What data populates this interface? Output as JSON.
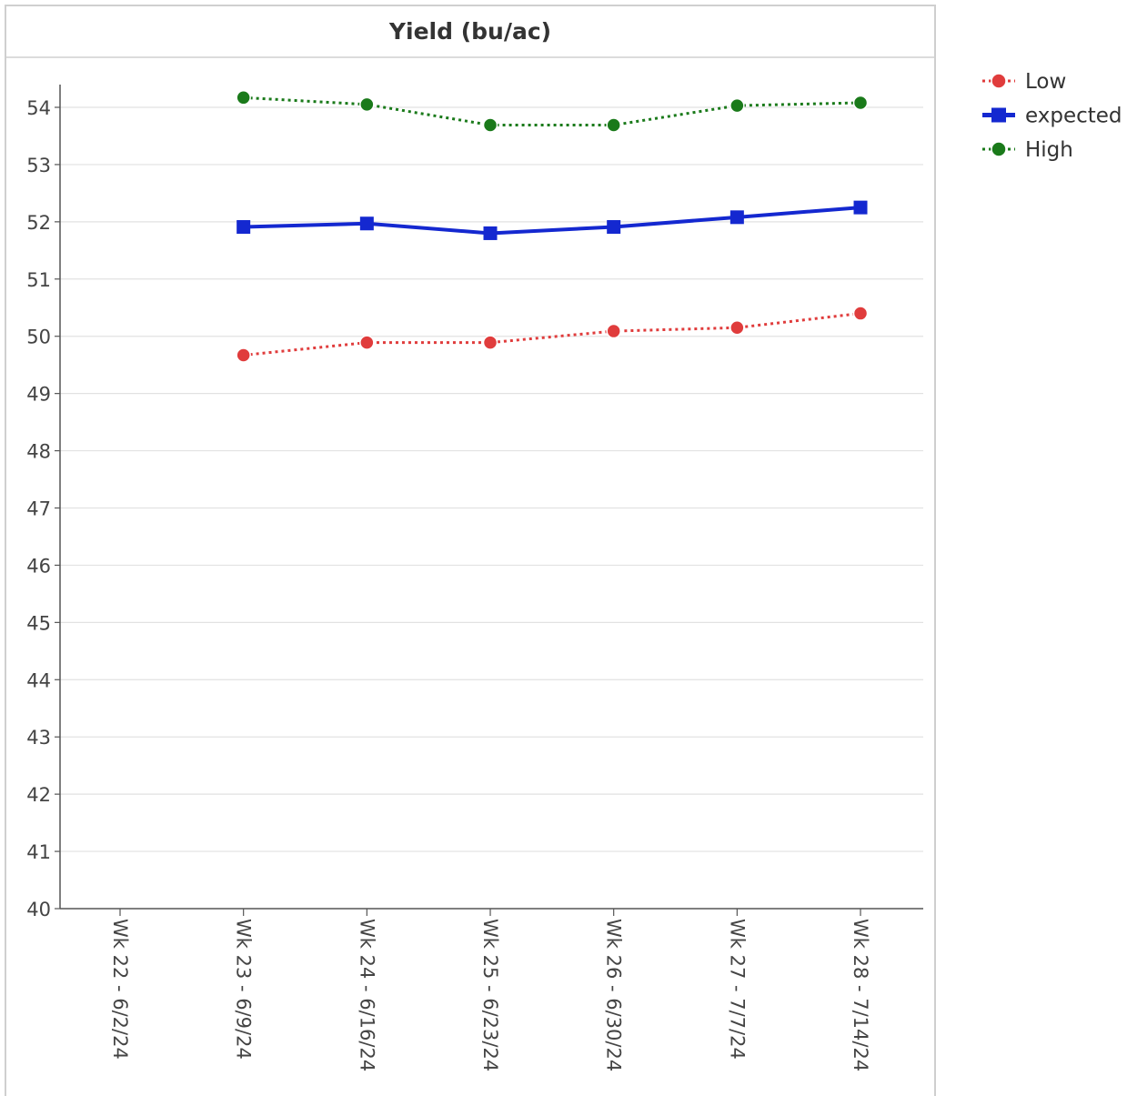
{
  "chart_data": {
    "type": "line",
    "title": "Yield (bu/ac)",
    "xlabel": "",
    "ylabel": "",
    "categories": [
      "Wk 22 - 6/2/24",
      "Wk 23 - 6/9/24",
      "Wk 24 - 6/16/24",
      "Wk 25 - 6/23/24",
      "Wk 26 - 6/30/24",
      "Wk 27 - 7/7/24",
      "Wk 28 - 7/14/24"
    ],
    "ylim": [
      40,
      54
    ],
    "yticks": [
      40,
      41,
      42,
      43,
      44,
      45,
      46,
      47,
      48,
      49,
      50,
      51,
      52,
      53,
      54
    ],
    "grid": "horizontal",
    "legend_position": "top-right",
    "series": [
      {
        "name": "Low",
        "values": [
          null,
          49.67,
          49.89,
          49.89,
          50.09,
          50.15,
          50.4
        ],
        "color": "#e03c3c",
        "line_style": "dotted",
        "marker": "circle"
      },
      {
        "name": "expected",
        "values": [
          null,
          51.91,
          51.97,
          51.8,
          51.91,
          52.08,
          52.25
        ],
        "color": "#1428d0",
        "line_style": "solid",
        "marker": "square"
      },
      {
        "name": "High",
        "values": [
          null,
          54.17,
          54.05,
          53.69,
          53.69,
          54.03,
          54.08
        ],
        "color": "#1a7a1a",
        "line_style": "dotted",
        "marker": "circle"
      }
    ]
  }
}
